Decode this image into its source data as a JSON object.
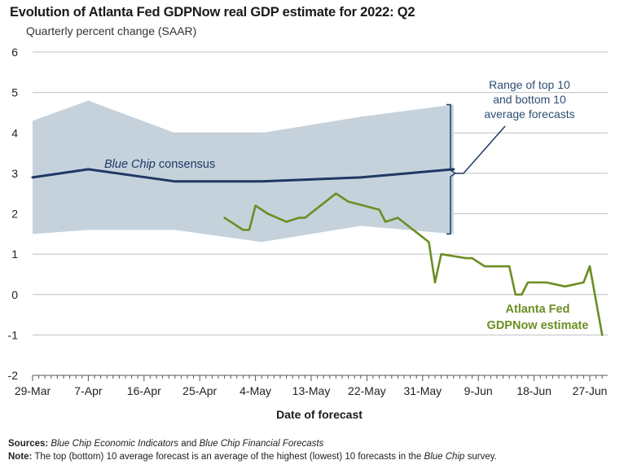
{
  "chart_data": {
    "type": "line",
    "title": "Evolution of Atlanta Fed GDPNow real GDP estimate for 2022: Q2",
    "subtitle": "Quarterly percent change (SAAR)",
    "xlabel": "Date of forecast",
    "ylabel": "",
    "ylim": [
      -2,
      6
    ],
    "yticks": [
      "6",
      "5",
      "4",
      "3",
      "2",
      "1",
      "0",
      "-1",
      "-2"
    ],
    "xticks": [
      "29-Mar",
      "7-Apr",
      "16-Apr",
      "25-Apr",
      "4-May",
      "13-May",
      "22-May",
      "31-May",
      "9-Jun",
      "18-Jun",
      "27-Jun"
    ],
    "grid": true,
    "band": {
      "name": "Range of top 10 and bottom 10 average forecasts",
      "upper": [
        [
          0,
          4.3
        ],
        [
          9,
          4.8
        ],
        [
          23,
          4.0
        ],
        [
          37,
          4.0
        ],
        [
          53,
          4.4
        ],
        [
          68,
          4.7
        ]
      ],
      "lower": [
        [
          0,
          1.5
        ],
        [
          9,
          1.6
        ],
        [
          23,
          1.6
        ],
        [
          37,
          1.3
        ],
        [
          53,
          1.7
        ],
        [
          68,
          1.5
        ]
      ]
    },
    "series": [
      {
        "name": "Blue Chip consensus",
        "color": "#1f3864",
        "points": [
          [
            0,
            2.9
          ],
          [
            9,
            3.1
          ],
          [
            23,
            2.8
          ],
          [
            37,
            2.8
          ],
          [
            53,
            2.9
          ],
          [
            68,
            3.1
          ]
        ]
      },
      {
        "name": "Atlanta Fed GDPNow estimate",
        "color": "#6b8e23",
        "points": [
          [
            31,
            1.9
          ],
          [
            34,
            1.6
          ],
          [
            35,
            1.6
          ],
          [
            36,
            2.2
          ],
          [
            38,
            2.0
          ],
          [
            41,
            1.8
          ],
          [
            43,
            1.9
          ],
          [
            44,
            1.9
          ],
          [
            49,
            2.5
          ],
          [
            51,
            2.3
          ],
          [
            56,
            2.1
          ],
          [
            57,
            1.8
          ],
          [
            59,
            1.9
          ],
          [
            64,
            1.3
          ],
          [
            65,
            0.3
          ],
          [
            66,
            1.0
          ],
          [
            70,
            0.9
          ],
          [
            71,
            0.9
          ],
          [
            73,
            0.7
          ],
          [
            77,
            0.7
          ],
          [
            78,
            0.0
          ],
          [
            79,
            0.0
          ],
          [
            80,
            0.3
          ],
          [
            83,
            0.3
          ],
          [
            86,
            0.2
          ],
          [
            89,
            0.3
          ],
          [
            90,
            0.7
          ],
          [
            92,
            -1.0
          ]
        ]
      }
    ],
    "annotations": {
      "range_label": [
        "Range of top 10",
        "and bottom 10",
        "average forecasts"
      ],
      "consensus_label": "Blue Chip consensus",
      "consensus_label_italic": "Blue Chip",
      "consensus_label_rest": " consensus",
      "gdpnow_label": [
        "Atlanta Fed",
        "GDPNow estimate"
      ]
    },
    "colors": {
      "band": "#c5d2dc",
      "consensus": "#1f3864",
      "gdpnow": "#6b8e23",
      "range_label": "#2d4e73",
      "grid": "#c0c0c0"
    }
  },
  "footer": {
    "sources_label": "Sources:",
    "sources_text_1": "Blue Chip Economic Indicators",
    "sources_text_2": " and ",
    "sources_text_3": "Blue Chip Financial Forecasts",
    "note_label": "Note:",
    "note_text_1": " The top (bottom) 10 average forecast is an average of the highest (lowest) 10 forecasts in the ",
    "note_text_2": "Blue Chip",
    "note_text_3": " survey."
  }
}
